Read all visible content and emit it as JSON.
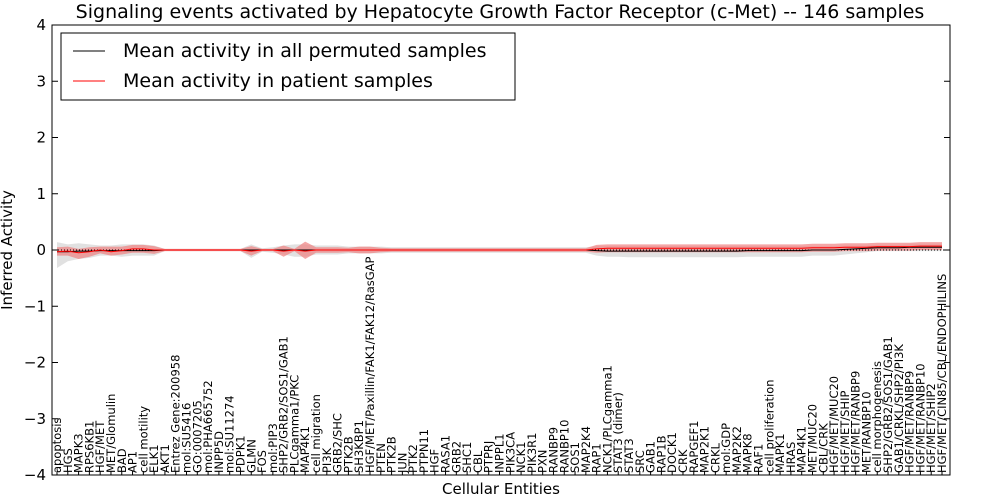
{
  "chart_data": {
    "type": "line",
    "title": "Signaling events activated by Hepatocyte Growth Factor Receptor (c-Met) -- 146 samples",
    "xlabel": "Cellular Entities",
    "ylabel": "Inferred Activity",
    "ylim": [
      -4,
      4
    ],
    "yticks": [
      4,
      3,
      2,
      1,
      0,
      -1,
      -2,
      -3,
      -4
    ],
    "ytick_labels": [
      "4",
      "3",
      "2",
      "1",
      "0",
      "−1",
      "−2",
      "−3",
      "−4"
    ],
    "legend_position": "top-left",
    "grid": false,
    "colors": {
      "permuted": "#000000",
      "patient": "#ff0000",
      "permuted_band": "#c8c8c8",
      "patient_band": "#f08080"
    },
    "entities": [
      "apoptosis",
      "HGS",
      "MAPK3",
      "RPS6KB1",
      "HGF/MET",
      "MET/Glomulin",
      "BAD",
      "AP1",
      "cell motility",
      "ELK1",
      "AKT1",
      "Entrez Gene:200958",
      "mol:SU5416",
      "GO:0007205",
      "mol:PHA665752",
      "INPP5D",
      "mol:SU11274",
      "PDPK1",
      "GLMN",
      "FOS",
      "mol:PIP3",
      "SHP2/GRB2/SOS1/GAB1",
      "PLCgamma1/PKC",
      "MAP4K1",
      "cell migration",
      "PI3K",
      "GRB2/SHC",
      "PTK2B",
      "SH3KBP1",
      "HGF/MET/Paxillin/FAK1/FAK12/RasGAP",
      "PTEN",
      "PTK2B",
      "JUN",
      "PTK2",
      "PTPN11",
      "HGF",
      "RASA1",
      "GRB2",
      "SHC1",
      "CBL",
      "PTPRJ",
      "INPPL1",
      "PIK3CA",
      "NCK1",
      "PIK3R1",
      "PXN",
      "RANBP9",
      "RANBP10",
      "SOS1",
      "MAP2K4",
      "RAP1",
      "NCK1/PLCgamma1",
      "STAT3 (dimer)",
      "STAT3",
      "SRC",
      "GAB1",
      "RAP1B",
      "DOCK1",
      "CRK",
      "RAPGEF1",
      "MAP2K1",
      "CRKL",
      "mol:GDP",
      "MAP2K2",
      "MAPK8",
      "RAF1",
      "cell proliferation",
      "MAPK1",
      "HRAS",
      "MAP4K1",
      "MET/MUC20",
      "CBL/CRK",
      "HGF/MET/MUC20",
      "HGF/MET/SHIP",
      "HGF/MET/RANBP9",
      "MET/RANBP10",
      "cell morphogenesis",
      "SHP2/GRB2/SOS1/GAB1",
      "GAB1/CRKL/SHP2/PI3K",
      "HGF/MET/RANBP9",
      "HGF/MET/RANBP10",
      "HGF/MET/SHIP2",
      "HGF/MET/CIN85/CBL/ENDOPHILINS"
    ],
    "series": [
      {
        "name": "Mean activity in all permuted samples",
        "color": "#000000",
        "values": [
          -0.03,
          -0.03,
          -0.02,
          -0.02,
          -0.01,
          -0.01,
          -0.01,
          -0.01,
          -0.01,
          -0.01,
          0.0,
          0.0,
          0.0,
          0.0,
          0.0,
          0.0,
          0.0,
          0.0,
          0.0,
          0.0,
          0.0,
          0.0,
          0.0,
          0.0,
          0.0,
          0.0,
          0.0,
          0.0,
          0.0,
          0.0,
          0.0,
          0.0,
          0.0,
          0.0,
          0.0,
          0.0,
          0.0,
          0.0,
          0.0,
          0.0,
          0.0,
          0.0,
          0.0,
          0.0,
          0.0,
          0.0,
          0.0,
          0.0,
          0.0,
          0.0,
          -0.01,
          -0.02,
          -0.02,
          -0.02,
          -0.02,
          -0.02,
          -0.02,
          -0.02,
          -0.02,
          -0.02,
          -0.02,
          -0.02,
          -0.02,
          -0.02,
          -0.01,
          -0.01,
          -0.01,
          -0.01,
          -0.01,
          -0.01,
          0.0,
          0.0,
          0.0,
          0.01,
          0.02,
          0.03,
          0.04,
          0.04,
          0.04,
          0.05,
          0.05,
          0.05,
          0.05
        ],
        "band_upper": [
          0.14,
          0.1,
          0.12,
          0.1,
          0.08,
          0.08,
          0.1,
          0.1,
          0.1,
          0.08,
          0.02,
          0.02,
          0.02,
          0.02,
          0.02,
          0.02,
          0.02,
          0.02,
          0.1,
          0.03,
          0.05,
          0.08,
          0.1,
          0.1,
          0.08,
          0.08,
          0.08,
          0.06,
          0.06,
          0.06,
          0.06,
          0.05,
          0.05,
          0.05,
          0.05,
          0.05,
          0.05,
          0.05,
          0.05,
          0.05,
          0.05,
          0.05,
          0.05,
          0.05,
          0.05,
          0.05,
          0.05,
          0.05,
          0.05,
          0.05,
          0.07,
          0.07,
          0.07,
          0.07,
          0.07,
          0.07,
          0.07,
          0.07,
          0.07,
          0.07,
          0.07,
          0.07,
          0.07,
          0.07,
          0.07,
          0.07,
          0.07,
          0.07,
          0.07,
          0.07,
          0.07,
          0.07,
          0.07,
          0.08,
          0.08,
          0.08,
          0.09,
          0.09,
          0.09,
          0.1,
          0.1,
          0.1,
          0.1
        ],
        "band_lower": [
          -0.32,
          -0.2,
          -0.16,
          -0.14,
          -0.1,
          -0.1,
          -0.12,
          -0.1,
          -0.1,
          -0.1,
          -0.02,
          -0.02,
          -0.02,
          -0.02,
          -0.02,
          -0.02,
          -0.02,
          -0.02,
          -0.14,
          -0.03,
          -0.05,
          -0.08,
          -0.12,
          -0.12,
          -0.08,
          -0.08,
          -0.08,
          -0.06,
          -0.06,
          -0.06,
          -0.06,
          -0.05,
          -0.05,
          -0.05,
          -0.05,
          -0.05,
          -0.05,
          -0.05,
          -0.05,
          -0.05,
          -0.05,
          -0.05,
          -0.05,
          -0.05,
          -0.05,
          -0.05,
          -0.05,
          -0.05,
          -0.05,
          -0.05,
          -0.1,
          -0.12,
          -0.12,
          -0.13,
          -0.13,
          -0.13,
          -0.13,
          -0.13,
          -0.13,
          -0.13,
          -0.13,
          -0.13,
          -0.13,
          -0.13,
          -0.12,
          -0.12,
          -0.12,
          -0.12,
          -0.12,
          -0.12,
          -0.1,
          -0.1,
          -0.1,
          -0.08,
          -0.06,
          -0.04,
          -0.02,
          -0.02,
          -0.02,
          -0.02,
          -0.02,
          -0.02,
          -0.02
        ]
      },
      {
        "name": "Mean activity in patient samples",
        "color": "#ff0000",
        "values": [
          -0.03,
          -0.02,
          -0.05,
          -0.03,
          0.0,
          -0.03,
          -0.01,
          0.02,
          0.02,
          0.0,
          0.0,
          0.0,
          0.0,
          0.0,
          0.0,
          0.0,
          0.0,
          0.0,
          -0.02,
          0.0,
          0.0,
          -0.02,
          0.0,
          -0.02,
          0.0,
          0.0,
          0.0,
          0.0,
          0.0,
          0.0,
          0.0,
          0.0,
          0.0,
          0.0,
          0.0,
          0.0,
          0.0,
          0.0,
          0.0,
          0.0,
          0.0,
          0.0,
          0.0,
          0.0,
          0.0,
          0.0,
          0.0,
          0.0,
          0.0,
          0.0,
          0.02,
          0.03,
          0.03,
          0.03,
          0.03,
          0.03,
          0.03,
          0.03,
          0.03,
          0.03,
          0.03,
          0.03,
          0.03,
          0.03,
          0.03,
          0.03,
          0.03,
          0.03,
          0.03,
          0.03,
          0.04,
          0.04,
          0.04,
          0.05,
          0.05,
          0.05,
          0.06,
          0.06,
          0.06,
          0.06,
          0.07,
          0.07,
          0.07
        ],
        "band_upper": [
          0.05,
          0.06,
          0.02,
          0.05,
          0.06,
          0.06,
          0.06,
          0.09,
          0.09,
          0.07,
          0.02,
          0.02,
          0.02,
          0.02,
          0.02,
          0.02,
          0.02,
          0.02,
          0.07,
          0.02,
          0.02,
          0.08,
          0.02,
          0.15,
          0.05,
          0.05,
          0.05,
          0.04,
          0.06,
          0.06,
          0.04,
          0.03,
          0.03,
          0.03,
          0.03,
          0.03,
          0.03,
          0.03,
          0.03,
          0.03,
          0.03,
          0.03,
          0.03,
          0.03,
          0.03,
          0.03,
          0.03,
          0.03,
          0.03,
          0.03,
          0.09,
          0.1,
          0.1,
          0.1,
          0.1,
          0.1,
          0.1,
          0.1,
          0.1,
          0.1,
          0.1,
          0.1,
          0.1,
          0.1,
          0.1,
          0.1,
          0.1,
          0.1,
          0.1,
          0.1,
          0.11,
          0.11,
          0.11,
          0.12,
          0.12,
          0.12,
          0.13,
          0.13,
          0.13,
          0.13,
          0.14,
          0.14,
          0.14
        ],
        "band_lower": [
          -0.1,
          -0.1,
          -0.16,
          -0.12,
          -0.06,
          -0.1,
          -0.08,
          -0.05,
          -0.05,
          -0.07,
          -0.02,
          -0.02,
          -0.02,
          -0.02,
          -0.02,
          -0.02,
          -0.02,
          -0.02,
          -0.1,
          -0.02,
          -0.02,
          -0.12,
          -0.02,
          -0.16,
          -0.05,
          -0.05,
          -0.05,
          -0.04,
          -0.06,
          -0.06,
          -0.04,
          -0.03,
          -0.03,
          -0.03,
          -0.03,
          -0.03,
          -0.03,
          -0.03,
          -0.03,
          -0.03,
          -0.03,
          -0.03,
          -0.03,
          -0.03,
          -0.03,
          -0.03,
          -0.03,
          -0.03,
          -0.03,
          -0.03,
          -0.05,
          -0.04,
          -0.04,
          -0.04,
          -0.04,
          -0.04,
          -0.04,
          -0.04,
          -0.04,
          -0.04,
          -0.04,
          -0.04,
          -0.04,
          -0.04,
          -0.04,
          -0.04,
          -0.04,
          -0.04,
          -0.04,
          -0.04,
          -0.03,
          -0.03,
          -0.03,
          -0.02,
          -0.02,
          -0.02,
          -0.01,
          -0.01,
          -0.01,
          -0.01,
          0.0,
          0.0,
          0.0
        ]
      }
    ]
  }
}
